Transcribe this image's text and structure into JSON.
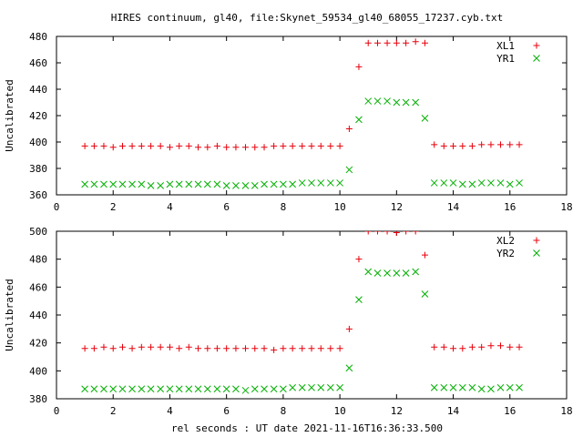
{
  "title": "HIRES continuum, gl40, file:Skynet_59534_gl40_68055_17237.cyb.txt",
  "xlabel": "rel seconds : UT date 2021-11-16T16:36:33.500",
  "colors": {
    "plus_series": "#e8000b",
    "cross_series": "#00b000",
    "frame": "#000000"
  },
  "chart_data": [
    {
      "type": "scatter",
      "ylabel": "Uncalibrated",
      "xlim": [
        0,
        18
      ],
      "ylim": [
        360,
        480
      ],
      "xticks": [
        0,
        2,
        4,
        6,
        8,
        10,
        12,
        14,
        16,
        18
      ],
      "yticks": [
        360,
        380,
        400,
        420,
        440,
        460,
        480
      ],
      "legend_position": "top-right",
      "series": [
        {
          "name": "XL1",
          "marker": "plus",
          "color": "#e8000b",
          "x": [
            1.0,
            1.33,
            1.67,
            2.0,
            2.33,
            2.67,
            3.0,
            3.33,
            3.67,
            4.0,
            4.33,
            4.67,
            5.0,
            5.33,
            5.67,
            6.0,
            6.33,
            6.67,
            7.0,
            7.33,
            7.67,
            8.0,
            8.33,
            8.67,
            9.0,
            9.33,
            9.67,
            10.0,
            10.33,
            10.67,
            11.0,
            11.33,
            11.67,
            12.0,
            12.33,
            12.67,
            13.0,
            13.33,
            13.67,
            14.0,
            14.33,
            14.67,
            15.0,
            15.33,
            15.67,
            16.0,
            16.33
          ],
          "y": [
            397,
            397,
            397,
            396,
            397,
            397,
            397,
            397,
            397,
            396,
            397,
            397,
            396,
            396,
            397,
            396,
            396,
            396,
            396,
            396,
            397,
            397,
            397,
            397,
            397,
            397,
            397,
            397,
            410,
            457,
            475,
            475,
            475,
            475,
            475,
            476,
            475,
            398,
            397,
            397,
            397,
            397,
            398,
            398,
            398,
            398,
            398
          ]
        },
        {
          "name": "YR1",
          "marker": "cross",
          "color": "#00b000",
          "x": [
            1.0,
            1.33,
            1.67,
            2.0,
            2.33,
            2.67,
            3.0,
            3.33,
            3.67,
            4.0,
            4.33,
            4.67,
            5.0,
            5.33,
            5.67,
            6.0,
            6.33,
            6.67,
            7.0,
            7.33,
            7.67,
            8.0,
            8.33,
            8.67,
            9.0,
            9.33,
            9.67,
            10.0,
            10.33,
            10.67,
            11.0,
            11.33,
            11.67,
            12.0,
            12.33,
            12.67,
            13.0,
            13.33,
            13.67,
            14.0,
            14.33,
            14.67,
            15.0,
            15.33,
            15.67,
            16.0,
            16.33
          ],
          "y": [
            368,
            368,
            368,
            368,
            368,
            368,
            368,
            367,
            367,
            368,
            368,
            368,
            368,
            368,
            368,
            367,
            367,
            367,
            367,
            368,
            368,
            368,
            368,
            369,
            369,
            369,
            369,
            369,
            379,
            417,
            431,
            431,
            431,
            430,
            430,
            430,
            418,
            369,
            369,
            369,
            368,
            368,
            369,
            369,
            369,
            368,
            369
          ]
        }
      ]
    },
    {
      "type": "scatter",
      "ylabel": "Uncalibrated",
      "xlim": [
        0,
        18
      ],
      "ylim": [
        380,
        500
      ],
      "xticks": [
        0,
        2,
        4,
        6,
        8,
        10,
        12,
        14,
        16,
        18
      ],
      "yticks": [
        380,
        400,
        420,
        440,
        460,
        480,
        500
      ],
      "legend_position": "top-right",
      "series": [
        {
          "name": "XL2",
          "marker": "plus",
          "color": "#e8000b",
          "x": [
            1.0,
            1.33,
            1.67,
            2.0,
            2.33,
            2.67,
            3.0,
            3.33,
            3.67,
            4.0,
            4.33,
            4.67,
            5.0,
            5.33,
            5.67,
            6.0,
            6.33,
            6.67,
            7.0,
            7.33,
            7.67,
            8.0,
            8.33,
            8.67,
            9.0,
            9.33,
            9.67,
            10.0,
            10.33,
            10.67,
            11.0,
            11.33,
            11.67,
            12.0,
            12.33,
            12.67,
            13.0,
            13.33,
            13.67,
            14.0,
            14.33,
            14.67,
            15.0,
            15.33,
            15.67,
            16.0,
            16.33
          ],
          "y": [
            416,
            416,
            417,
            416,
            417,
            416,
            417,
            417,
            417,
            417,
            416,
            417,
            416,
            416,
            416,
            416,
            416,
            416,
            416,
            416,
            415,
            416,
            416,
            416,
            416,
            416,
            416,
            416,
            430,
            480,
            500,
            500,
            500,
            499,
            500,
            500,
            483,
            417,
            417,
            416,
            416,
            417,
            417,
            418,
            418,
            417,
            417
          ]
        },
        {
          "name": "YR2",
          "marker": "cross",
          "color": "#00b000",
          "x": [
            1.0,
            1.33,
            1.67,
            2.0,
            2.33,
            2.67,
            3.0,
            3.33,
            3.67,
            4.0,
            4.33,
            4.67,
            5.0,
            5.33,
            5.67,
            6.0,
            6.33,
            6.67,
            7.0,
            7.33,
            7.67,
            8.0,
            8.33,
            8.67,
            9.0,
            9.33,
            9.67,
            10.0,
            10.33,
            10.67,
            11.0,
            11.33,
            11.67,
            12.0,
            12.33,
            12.67,
            13.0,
            13.33,
            13.67,
            14.0,
            14.33,
            14.67,
            15.0,
            15.33,
            15.67,
            16.0,
            16.33
          ],
          "y": [
            387,
            387,
            387,
            387,
            387,
            387,
            387,
            387,
            387,
            387,
            387,
            387,
            387,
            387,
            387,
            387,
            387,
            386,
            387,
            387,
            387,
            387,
            388,
            388,
            388,
            388,
            388,
            388,
            402,
            451,
            471,
            470,
            470,
            470,
            470,
            471,
            455,
            388,
            388,
            388,
            388,
            388,
            387,
            387,
            388,
            388,
            388
          ]
        }
      ]
    }
  ]
}
